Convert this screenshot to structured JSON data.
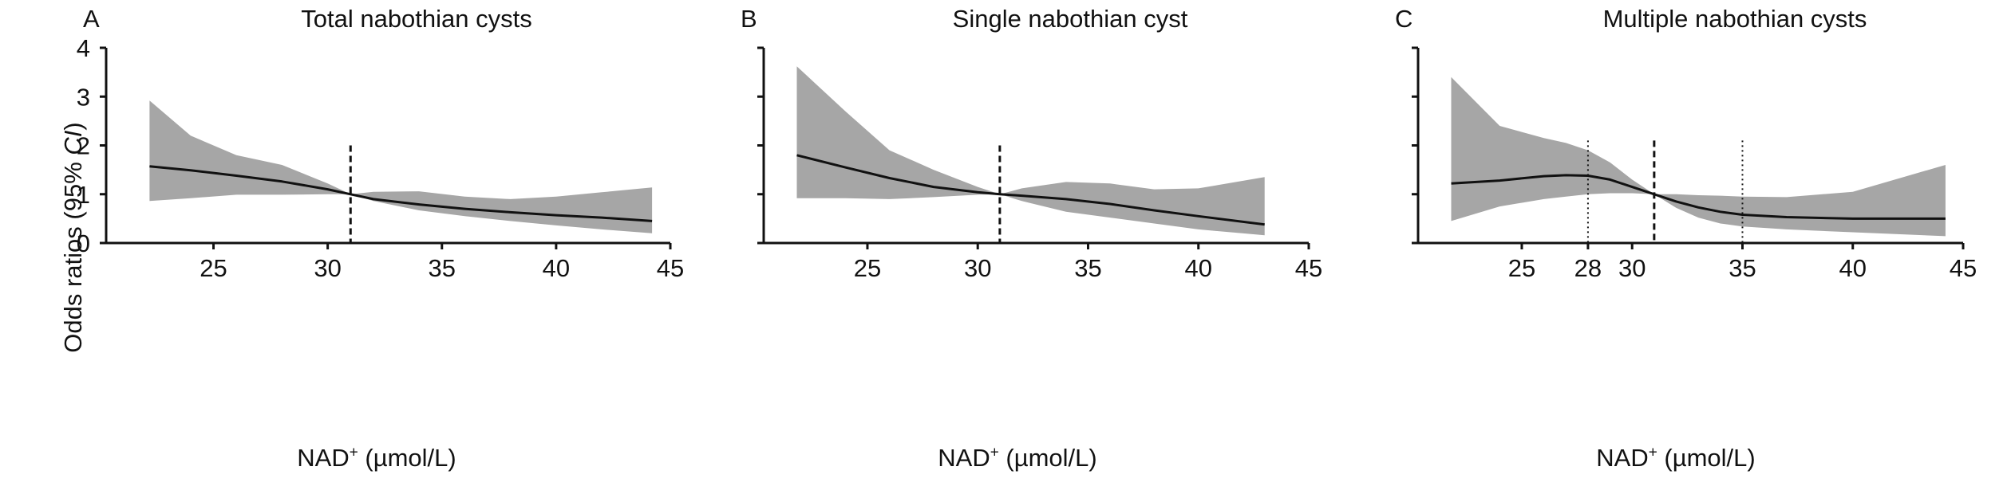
{
  "figure": {
    "y_axis_label": "Odds ratios (95% CI)",
    "y_axis_label_prefix": "Odds ratios (95% ",
    "y_axis_label_italic": "CI",
    "y_axis_label_suffix": ")",
    "x_axis_label_base": "NAD",
    "x_axis_label_sup": "+",
    "x_axis_label_unit": " (µmol/L)",
    "colors": {
      "band": "#a6a6a6",
      "line": "#111111",
      "axis": "#111111",
      "reference": "#111111"
    }
  },
  "chart_data": [
    {
      "type": "line",
      "panel_letter": "A",
      "title": "Total nabothian cysts",
      "xlabel": "NAD+ (µmol/L)",
      "ylabel": "Odds ratios (95% CI)",
      "xlim": [
        20.3,
        45
      ],
      "ylim": [
        0,
        4
      ],
      "x_ticks": [
        25,
        30,
        35,
        40,
        45
      ],
      "y_ticks": [
        0,
        1,
        2,
        3,
        4
      ],
      "reference_lines": [
        {
          "x": 31,
          "style": "dashed",
          "y_top": 2
        }
      ],
      "series": [
        {
          "x": [
            22.2,
            24,
            26,
            28,
            30,
            31,
            32,
            34,
            36,
            38,
            40,
            42,
            44.2
          ],
          "values": [
            1.57,
            1.49,
            1.38,
            1.26,
            1.1,
            1.0,
            0.9,
            0.79,
            0.7,
            0.63,
            0.57,
            0.52,
            0.45
          ],
          "lower": [
            0.86,
            0.92,
            0.99,
            0.99,
            1.0,
            1.0,
            0.86,
            0.67,
            0.55,
            0.45,
            0.36,
            0.28,
            0.2
          ],
          "upper": [
            2.92,
            2.2,
            1.8,
            1.6,
            1.22,
            1.0,
            1.05,
            1.06,
            0.95,
            0.9,
            0.95,
            1.04,
            1.14
          ]
        }
      ]
    },
    {
      "type": "line",
      "panel_letter": "B",
      "title": "Single nabothian cyst",
      "xlabel": "NAD+ (µmol/L)",
      "ylabel": "",
      "xlim": [
        20.3,
        45
      ],
      "ylim": [
        0,
        4
      ],
      "x_ticks": [
        25,
        30,
        35,
        40,
        45
      ],
      "y_ticks": [
        0,
        1,
        2,
        3,
        4
      ],
      "reference_lines": [
        {
          "x": 31,
          "style": "dashed",
          "y_top": 2
        }
      ],
      "series": [
        {
          "x": [
            21.8,
            24,
            26,
            28,
            30,
            31,
            32,
            34,
            36,
            38,
            40,
            43
          ],
          "values": [
            1.8,
            1.55,
            1.33,
            1.15,
            1.04,
            1.0,
            0.97,
            0.9,
            0.8,
            0.67,
            0.55,
            0.38
          ],
          "lower": [
            0.92,
            0.92,
            0.9,
            0.94,
            0.99,
            1.0,
            0.86,
            0.64,
            0.52,
            0.4,
            0.28,
            0.16
          ],
          "upper": [
            3.62,
            2.7,
            1.9,
            1.5,
            1.15,
            1.0,
            1.12,
            1.25,
            1.22,
            1.1,
            1.12,
            1.35
          ]
        }
      ]
    },
    {
      "type": "line",
      "panel_letter": "C",
      "title": "Multiple nabothian cysts",
      "xlabel": "NAD+ (µmol/L)",
      "ylabel": "",
      "xlim": [
        20.3,
        45
      ],
      "ylim": [
        0,
        4
      ],
      "x_ticks": [
        25,
        28,
        30,
        35,
        40,
        45
      ],
      "y_ticks": [
        0,
        1,
        2,
        3,
        4
      ],
      "reference_lines": [
        {
          "x": 28,
          "style": "dotted",
          "y_top": 2.1
        },
        {
          "x": 31,
          "style": "dashed",
          "y_top": 2.1
        },
        {
          "x": 35,
          "style": "dotted",
          "y_top": 2.1
        }
      ],
      "series": [
        {
          "x": [
            21.8,
            24,
            26,
            27,
            28,
            29,
            30,
            31,
            32,
            33,
            34,
            35,
            37,
            40,
            44.2
          ],
          "values": [
            1.22,
            1.28,
            1.37,
            1.39,
            1.38,
            1.3,
            1.15,
            1.0,
            0.85,
            0.73,
            0.64,
            0.58,
            0.53,
            0.5,
            0.5
          ],
          "lower": [
            0.45,
            0.75,
            0.9,
            0.95,
            1.0,
            1.02,
            1.02,
            1.0,
            0.72,
            0.52,
            0.4,
            0.34,
            0.28,
            0.22,
            0.14
          ],
          "upper": [
            3.4,
            2.4,
            2.15,
            2.05,
            1.9,
            1.65,
            1.3,
            1.0,
            1.0,
            0.98,
            0.97,
            0.95,
            0.94,
            1.05,
            1.6
          ]
        }
      ]
    }
  ]
}
